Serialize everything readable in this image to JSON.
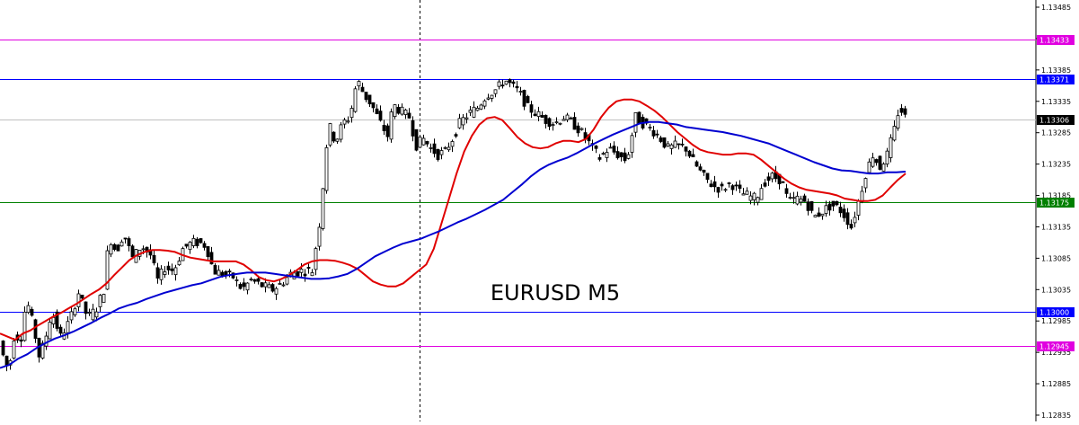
{
  "chart_data": {
    "type": "line",
    "title": "EURUSD M5",
    "ylim": [
      1.12835,
      1.13485
    ],
    "y_ticks": [
      "1.13485",
      "1.13435",
      "1.13385",
      "1.13335",
      "1.13285",
      "1.13235",
      "1.13185",
      "1.13135",
      "1.13085",
      "1.13035",
      "1.12985",
      "1.12935",
      "1.12885",
      "1.12835"
    ],
    "horizontal_levels": [
      {
        "value": 1.13433,
        "label": "1.13433",
        "color": "#e000e0"
      },
      {
        "value": 1.13371,
        "label": "1.13371",
        "color": "#0000ff"
      },
      {
        "value": 1.13306,
        "label": "1.13306",
        "color": "#000000",
        "line_color": "#c0c0c0"
      },
      {
        "value": 1.13175,
        "label": "1.13175",
        "color": "#008000"
      },
      {
        "value": 1.13,
        "label": "1.13000",
        "color": "#0000ff"
      },
      {
        "value": 1.12945,
        "label": "1.12945",
        "color": "#e000e0"
      }
    ],
    "series": [
      {
        "color": "#e00000",
        "values": [
          1.12965,
          1.1296,
          1.12955,
          1.12965,
          1.1297,
          1.12978,
          1.12985,
          1.12992,
          1.12998,
          1.13005,
          1.13012,
          1.1302,
          1.13028,
          1.13035,
          1.13045,
          1.13058,
          1.1307,
          1.13082,
          1.1309,
          1.13095,
          1.13098,
          1.13098,
          1.13097,
          1.13095,
          1.1309,
          1.13086,
          1.13084,
          1.13082,
          1.1308,
          1.1308,
          1.1308,
          1.1308,
          1.13075,
          1.13066,
          1.13055,
          1.1305,
          1.13048,
          1.13052,
          1.13058,
          1.13066,
          1.13075,
          1.1308,
          1.13082,
          1.13082,
          1.13081,
          1.13078,
          1.13074,
          1.13068,
          1.13058,
          1.13048,
          1.13043,
          1.1304,
          1.1304,
          1.13045,
          1.13055,
          1.13065,
          1.13075,
          1.131,
          1.1314,
          1.1318,
          1.1322,
          1.13255,
          1.1328,
          1.13298,
          1.13308,
          1.1331,
          1.13305,
          1.13292,
          1.13278,
          1.13268,
          1.13262,
          1.1326,
          1.13262,
          1.13268,
          1.13272,
          1.13272,
          1.1327,
          1.13275,
          1.1329,
          1.1331,
          1.13325,
          1.13335,
          1.13338,
          1.13338,
          1.13335,
          1.13328,
          1.1332,
          1.1331,
          1.13298,
          1.13286,
          1.13276,
          1.13266,
          1.13258,
          1.13254,
          1.13252,
          1.1325,
          1.1325,
          1.13252,
          1.13252,
          1.1325,
          1.13242,
          1.13232,
          1.13222,
          1.13212,
          1.13204,
          1.13198,
          1.13194,
          1.13192,
          1.1319,
          1.13188,
          1.13185,
          1.1318,
          1.13178,
          1.13176,
          1.13176,
          1.13178,
          1.13185,
          1.13198,
          1.1321,
          1.1322
        ]
      },
      {
        "color": "#0000d0",
        "values": [
          1.1291,
          1.12915,
          1.12925,
          1.12932,
          1.12942,
          1.1295,
          1.12957,
          1.12962,
          1.12968,
          1.12975,
          1.12982,
          1.1299,
          1.12997,
          1.13005,
          1.1301,
          1.13014,
          1.1302,
          1.13025,
          1.1303,
          1.13034,
          1.13038,
          1.13042,
          1.13045,
          1.1305,
          1.13055,
          1.13058,
          1.1306,
          1.13062,
          1.13062,
          1.13062,
          1.1306,
          1.13058,
          1.13056,
          1.13054,
          1.13052,
          1.13052,
          1.13053,
          1.13056,
          1.1306,
          1.13068,
          1.13078,
          1.13088,
          1.13095,
          1.13102,
          1.13108,
          1.13112,
          1.13116,
          1.13122,
          1.13128,
          1.13135,
          1.13142,
          1.13148,
          1.13155,
          1.13162,
          1.1317,
          1.13178,
          1.1319,
          1.13202,
          1.13215,
          1.13226,
          1.13234,
          1.1324,
          1.13245,
          1.13252,
          1.1326,
          1.13268,
          1.13275,
          1.13282,
          1.13288,
          1.13294,
          1.133,
          1.13302,
          1.13302,
          1.133,
          1.13298,
          1.13294,
          1.13292,
          1.1329,
          1.13288,
          1.13286,
          1.13283,
          1.1328,
          1.13276,
          1.13272,
          1.13268,
          1.13262,
          1.13256,
          1.1325,
          1.13244,
          1.13238,
          1.13233,
          1.13228,
          1.13225,
          1.13224,
          1.13222,
          1.1322,
          1.1322,
          1.13222,
          1.13222,
          1.13223
        ]
      }
    ]
  }
}
